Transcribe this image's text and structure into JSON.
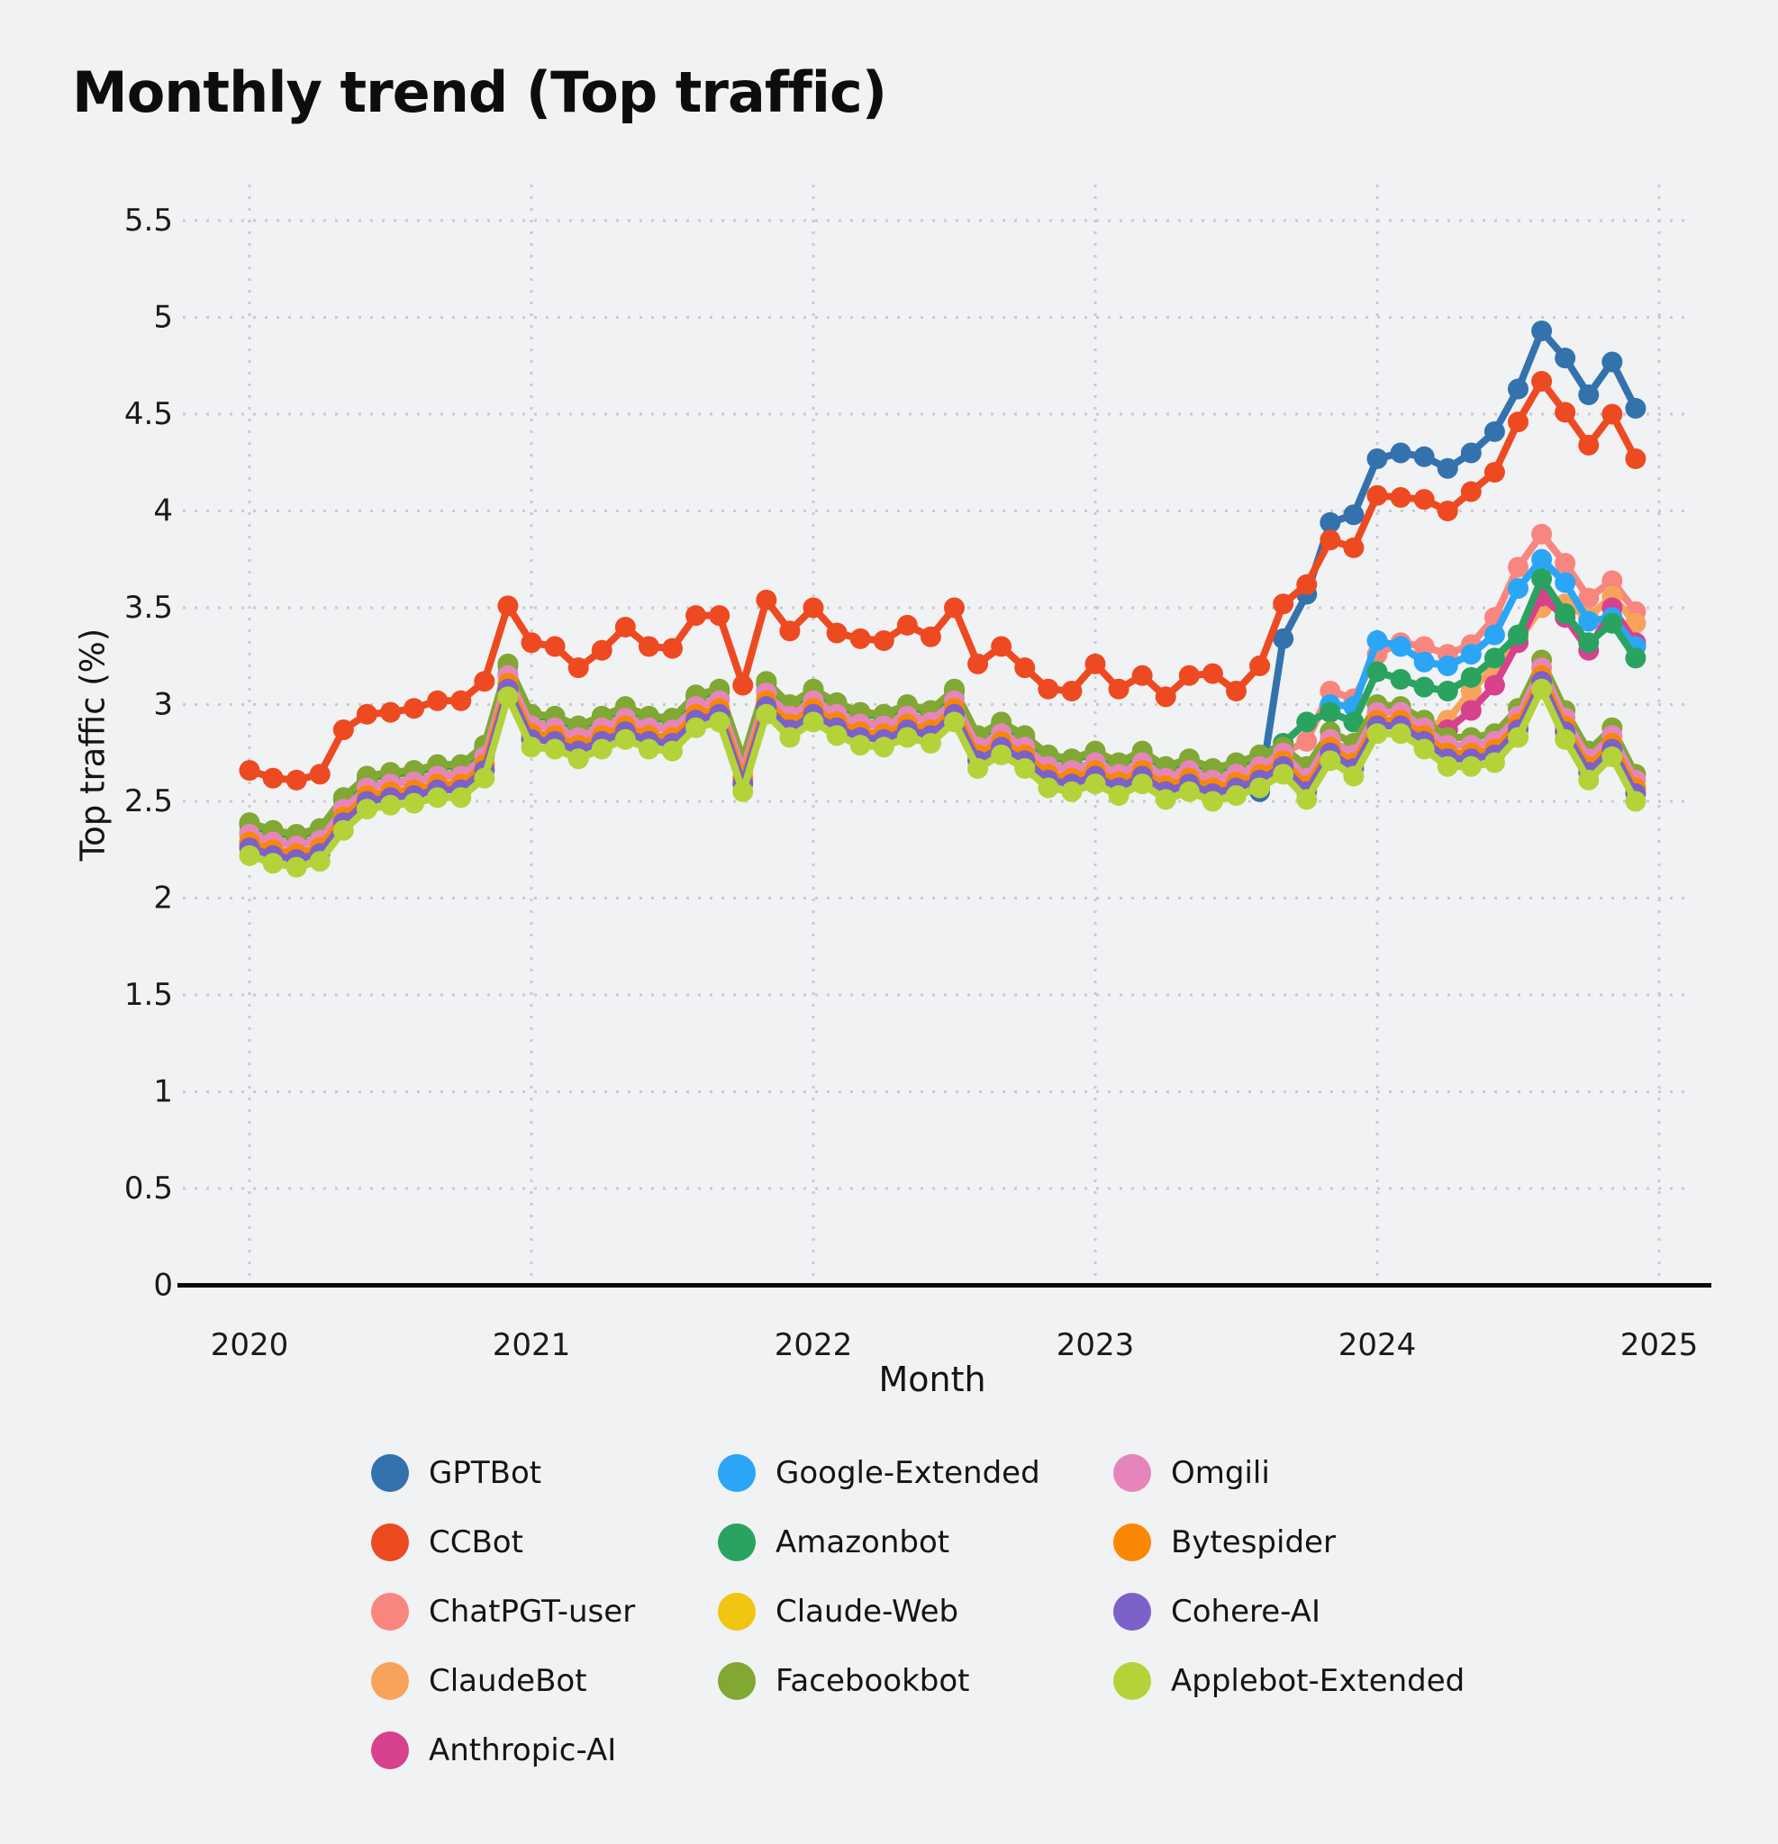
{
  "page": {
    "title": "Monthly trend (Top traffic)"
  },
  "chart_data": {
    "type": "line",
    "title": "Monthly trend (Top traffic)",
    "xlabel": "Month",
    "ylabel": "Top traffic (%)",
    "ylim": [
      0,
      5.5
    ],
    "ytick_step": 0.5,
    "y_tick_labels": [
      "0",
      "0.5",
      "1",
      "1.5",
      "2",
      "2.5",
      "3",
      "3.5",
      "4",
      "4.5",
      "5",
      "5.5"
    ],
    "x_tick_labels": [
      "2020",
      "2021",
      "2022",
      "2023",
      "2024",
      "2025"
    ],
    "x_start": "2020-01",
    "x_frequency": "monthly",
    "grid": true,
    "legend_position": "bottom",
    "marker": "circle",
    "series": [
      {
        "name": "GPTBot",
        "color": "#3372ad",
        "start_index": 43,
        "values": [
          2.55,
          3.34,
          3.57,
          3.94,
          3.98,
          4.27,
          4.3,
          4.28,
          4.22,
          4.3,
          4.41,
          4.63,
          4.93,
          4.79,
          4.6,
          4.77,
          4.53
        ]
      },
      {
        "name": "CCBot",
        "color": "#ed4a21",
        "start_index": 0,
        "values": [
          2.66,
          2.62,
          2.61,
          2.64,
          2.87,
          2.95,
          2.96,
          2.98,
          3.02,
          3.02,
          3.12,
          3.51,
          3.32,
          3.3,
          3.19,
          3.28,
          3.4,
          3.3,
          3.29,
          3.46,
          3.46,
          3.1,
          3.54,
          3.38,
          3.5,
          3.37,
          3.34,
          3.33,
          3.41,
          3.35,
          3.5,
          3.21,
          3.3,
          3.19,
          3.08,
          3.07,
          3.21,
          3.08,
          3.15,
          3.04,
          3.15,
          3.16,
          3.07,
          3.2,
          3.52,
          3.62,
          3.85,
          3.81,
          4.08,
          4.07,
          4.06,
          4.0,
          4.1,
          4.2,
          4.46,
          4.67,
          4.51,
          4.34,
          4.5,
          4.27
        ]
      },
      {
        "name": "ChatPGT-user",
        "color": "#f8867f",
        "start_index": 0,
        "values": [
          2.34,
          2.3,
          2.28,
          2.31,
          2.47,
          2.58,
          2.6,
          2.61,
          2.64,
          2.64,
          2.74,
          3.16,
          2.9,
          2.89,
          2.84,
          2.89,
          2.94,
          2.89,
          2.88,
          3.0,
          3.03,
          2.67,
          3.07,
          2.95,
          3.03,
          2.96,
          2.91,
          2.9,
          2.95,
          2.92,
          3.03,
          2.79,
          2.86,
          2.79,
          2.69,
          2.67,
          2.7,
          2.66,
          2.72,
          2.64,
          2.68,
          2.64,
          2.68,
          2.72,
          2.75,
          2.81,
          3.07,
          3.03,
          3.26,
          3.32,
          3.3,
          3.26,
          3.31,
          3.45,
          3.71,
          3.88,
          3.73,
          3.55,
          3.64,
          3.48
        ]
      },
      {
        "name": "ClaudeBot",
        "color": "#f7a35b",
        "start_index": 50,
        "values": [
          2.88,
          2.92,
          3.07,
          3.2,
          3.33,
          3.5,
          3.52,
          3.45,
          3.56,
          3.42
        ]
      },
      {
        "name": "Anthropic-AI",
        "color": "#d7418e",
        "start_index": 50,
        "values": [
          2.84,
          2.87,
          2.97,
          3.1,
          3.32,
          3.56,
          3.45,
          3.28,
          3.5,
          3.32
        ]
      },
      {
        "name": "Google-Extended",
        "color": "#2ba5f5",
        "start_index": 46,
        "values": [
          3.0,
          2.99,
          3.33,
          3.3,
          3.22,
          3.2,
          3.26,
          3.36,
          3.6,
          3.75,
          3.63,
          3.43,
          3.45,
          3.3
        ]
      },
      {
        "name": "Amazonbot",
        "color": "#29a35f",
        "start_index": 0,
        "values": [
          2.38,
          2.34,
          2.32,
          2.35,
          2.51,
          2.62,
          2.64,
          2.65,
          2.68,
          2.68,
          2.78,
          3.2,
          2.94,
          2.93,
          2.88,
          2.93,
          2.98,
          2.93,
          2.92,
          3.04,
          3.07,
          2.71,
          3.11,
          2.99,
          3.07,
          3.0,
          2.95,
          2.94,
          2.99,
          2.96,
          3.07,
          2.83,
          2.9,
          2.83,
          2.73,
          2.71,
          2.75,
          2.69,
          2.75,
          2.67,
          2.71,
          2.66,
          2.69,
          2.73,
          2.8,
          2.91,
          2.96,
          2.91,
          3.17,
          3.13,
          3.09,
          3.07,
          3.14,
          3.24,
          3.36,
          3.65,
          3.47,
          3.32,
          3.42,
          3.24
        ]
      },
      {
        "name": "Claude-Web",
        "color": "#f2c513",
        "start_index": 0,
        "values": [
          2.28,
          2.24,
          2.22,
          2.25,
          2.41,
          2.52,
          2.54,
          2.55,
          2.58,
          2.58,
          2.68,
          3.1,
          2.84,
          2.83,
          2.78,
          2.83,
          2.88,
          2.83,
          2.82,
          2.94,
          2.97,
          2.61,
          3.01,
          2.89,
          2.97,
          2.9,
          2.85,
          2.84,
          2.89,
          2.86,
          2.97,
          2.73,
          2.8,
          2.73,
          2.63,
          2.61,
          2.65,
          2.59,
          2.65,
          2.57,
          2.61,
          2.56,
          2.59,
          2.63,
          2.7,
          2.57,
          2.77,
          2.69,
          2.91,
          2.91,
          2.83,
          2.74,
          2.74,
          2.76,
          2.89,
          3.14,
          2.88,
          2.67,
          2.79,
          2.56
        ]
      },
      {
        "name": "Facebookbot",
        "color": "#80a833",
        "start_index": 0,
        "values": [
          2.39,
          2.35,
          2.33,
          2.36,
          2.52,
          2.63,
          2.65,
          2.66,
          2.69,
          2.69,
          2.79,
          3.21,
          2.95,
          2.94,
          2.89,
          2.94,
          2.99,
          2.94,
          2.93,
          3.05,
          3.08,
          2.72,
          3.12,
          3.0,
          3.08,
          3.01,
          2.96,
          2.95,
          3.0,
          2.97,
          3.08,
          2.84,
          2.91,
          2.84,
          2.74,
          2.72,
          2.76,
          2.7,
          2.76,
          2.68,
          2.72,
          2.67,
          2.7,
          2.74,
          2.78,
          2.68,
          2.86,
          2.8,
          3.0,
          2.99,
          2.92,
          2.83,
          2.83,
          2.85,
          2.98,
          3.23,
          2.97,
          2.76,
          2.88,
          2.64
        ]
      },
      {
        "name": "Omgili",
        "color": "#e685bb",
        "start_index": 0,
        "values": [
          2.33,
          2.29,
          2.27,
          2.3,
          2.46,
          2.57,
          2.59,
          2.6,
          2.63,
          2.63,
          2.73,
          3.15,
          2.89,
          2.88,
          2.83,
          2.88,
          2.93,
          2.88,
          2.87,
          2.99,
          3.02,
          2.66,
          3.06,
          2.94,
          3.02,
          2.95,
          2.9,
          2.89,
          2.94,
          2.91,
          3.02,
          2.78,
          2.85,
          2.78,
          2.68,
          2.66,
          2.7,
          2.64,
          2.7,
          2.62,
          2.66,
          2.61,
          2.64,
          2.68,
          2.75,
          2.62,
          2.82,
          2.74,
          2.96,
          2.96,
          2.88,
          2.79,
          2.79,
          2.81,
          2.94,
          3.19,
          2.93,
          2.72,
          2.84,
          2.61
        ]
      },
      {
        "name": "Bytespider",
        "color": "#fa8703",
        "start_index": 0,
        "values": [
          2.29,
          2.25,
          2.23,
          2.26,
          2.42,
          2.53,
          2.55,
          2.56,
          2.59,
          2.59,
          2.69,
          3.11,
          2.85,
          2.84,
          2.79,
          2.84,
          2.89,
          2.84,
          2.83,
          2.95,
          2.98,
          2.62,
          3.02,
          2.9,
          2.98,
          2.91,
          2.86,
          2.85,
          2.9,
          2.87,
          2.98,
          2.74,
          2.81,
          2.74,
          2.64,
          2.62,
          2.66,
          2.6,
          2.66,
          2.58,
          2.62,
          2.57,
          2.6,
          2.64,
          2.71,
          2.58,
          2.78,
          2.7,
          2.92,
          2.92,
          2.84,
          2.75,
          2.75,
          2.77,
          2.9,
          3.15,
          2.89,
          2.68,
          2.8,
          2.57
        ]
      },
      {
        "name": "Cohere-AI",
        "color": "#7b61c8",
        "start_index": 0,
        "values": [
          2.26,
          2.22,
          2.2,
          2.23,
          2.39,
          2.5,
          2.52,
          2.53,
          2.56,
          2.56,
          2.66,
          3.08,
          2.82,
          2.81,
          2.76,
          2.81,
          2.86,
          2.81,
          2.8,
          2.92,
          2.95,
          2.59,
          2.99,
          2.87,
          2.95,
          2.88,
          2.83,
          2.82,
          2.87,
          2.84,
          2.95,
          2.71,
          2.78,
          2.71,
          2.61,
          2.59,
          2.63,
          2.57,
          2.63,
          2.55,
          2.59,
          2.54,
          2.57,
          2.61,
          2.68,
          2.55,
          2.75,
          2.67,
          2.89,
          2.89,
          2.81,
          2.72,
          2.72,
          2.74,
          2.87,
          3.12,
          2.86,
          2.65,
          2.77,
          2.54
        ]
      },
      {
        "name": "Applebot-Extended",
        "color": "#b3d339",
        "start_index": 0,
        "values": [
          2.22,
          2.18,
          2.16,
          2.19,
          2.35,
          2.46,
          2.48,
          2.49,
          2.52,
          2.52,
          2.62,
          3.04,
          2.78,
          2.77,
          2.72,
          2.77,
          2.82,
          2.77,
          2.76,
          2.88,
          2.91,
          2.55,
          2.95,
          2.83,
          2.91,
          2.84,
          2.79,
          2.78,
          2.83,
          2.8,
          2.91,
          2.67,
          2.74,
          2.67,
          2.57,
          2.55,
          2.59,
          2.53,
          2.59,
          2.51,
          2.55,
          2.5,
          2.53,
          2.57,
          2.64,
          2.51,
          2.71,
          2.63,
          2.85,
          2.85,
          2.77,
          2.68,
          2.68,
          2.7,
          2.83,
          3.08,
          2.82,
          2.61,
          2.73,
          2.5
        ]
      }
    ]
  }
}
